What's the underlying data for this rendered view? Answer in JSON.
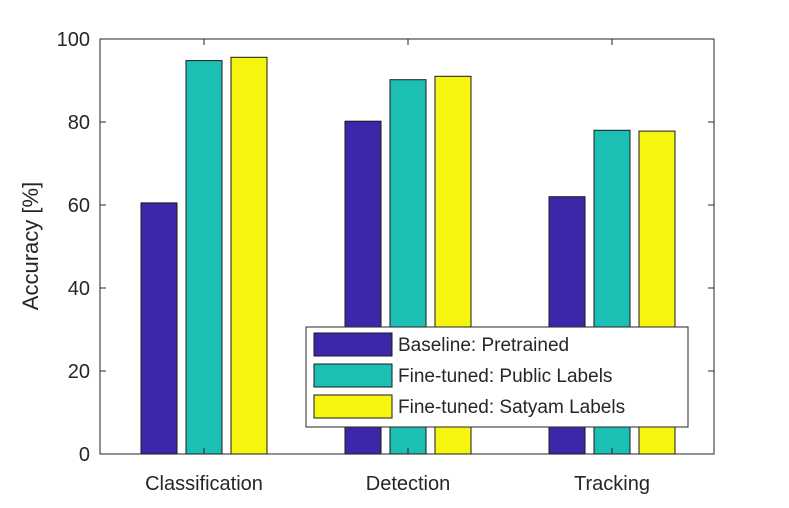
{
  "chart_data": {
    "type": "bar",
    "title": "",
    "xlabel": "",
    "ylabel": "Accuracy [%]",
    "categories": [
      "Classification",
      "Detection",
      "Tracking"
    ],
    "ylim": [
      0,
      100
    ],
    "yticks": [
      0,
      20,
      40,
      60,
      80,
      100
    ],
    "series": [
      {
        "name": "Baseline: Pretrained",
        "color": "#3d26a8",
        "values": [
          60.5,
          80.2,
          62.0
        ]
      },
      {
        "name": "Fine-tuned: Public Labels",
        "color": "#1bbfb4",
        "values": [
          94.8,
          90.2,
          78.0
        ]
      },
      {
        "name": "Fine-tuned: Satyam Labels",
        "color": "#f5f50f",
        "values": [
          95.6,
          91.0,
          77.8
        ]
      }
    ],
    "grid": false,
    "legend_position": "bottom-right"
  }
}
